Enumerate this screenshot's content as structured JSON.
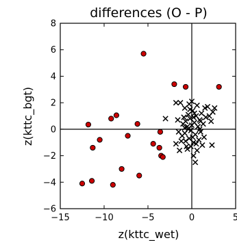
{
  "chart_data": {
    "type": "scatter",
    "title": "differences (O - P)",
    "xlabel": "z(kttc_wet)",
    "ylabel": "z(kttc_bgt)",
    "xlim": [
      -15,
      5
    ],
    "ylim": [
      -6,
      8
    ],
    "xticks": [
      "−15",
      "−10",
      "−5",
      "0",
      "5"
    ],
    "xtick_values": [
      -15,
      -10,
      -5,
      0,
      5
    ],
    "yticks": [
      "8",
      "6",
      "4",
      "2",
      "0",
      "−2",
      "−4",
      "−6"
    ],
    "ytick_values": [
      8,
      6,
      4,
      2,
      0,
      -2,
      -4,
      -6
    ],
    "reference_lines": {
      "x": 0,
      "y": 0
    },
    "grid": false,
    "series": [
      {
        "marker": "circle",
        "color": "#cc0000",
        "points": [
          [
            -12.5,
            -4.1
          ],
          [
            -11.8,
            0.35
          ],
          [
            -11.3,
            -1.4
          ],
          [
            -11.4,
            -3.9
          ],
          [
            -10.5,
            -0.8
          ],
          [
            -9.2,
            0.8
          ],
          [
            -9.0,
            -4.2
          ],
          [
            -8.6,
            1.05
          ],
          [
            -8.0,
            -3.0
          ],
          [
            -7.3,
            -0.5
          ],
          [
            -6.2,
            0.4
          ],
          [
            -6.0,
            -3.5
          ],
          [
            -5.5,
            5.7
          ],
          [
            -4.4,
            -1.1
          ],
          [
            -3.7,
            -1.4
          ],
          [
            -3.6,
            -0.2
          ],
          [
            -3.5,
            -2.0
          ],
          [
            -3.3,
            -2.1
          ],
          [
            -2.0,
            3.4
          ],
          [
            -0.7,
            3.2
          ],
          [
            3.1,
            3.2
          ]
        ]
      },
      {
        "marker": "x",
        "color": "#000000",
        "points": [
          [
            -3.0,
            0.8
          ],
          [
            -1.8,
            2.0
          ],
          [
            -1.3,
            2.0
          ],
          [
            -0.8,
            1.6
          ],
          [
            -0.3,
            1.9
          ],
          [
            0.0,
            2.1
          ],
          [
            -1.8,
            -1.1
          ],
          [
            -1.4,
            -1.6
          ],
          [
            -1.2,
            -0.9
          ],
          [
            -1.0,
            0.4
          ],
          [
            -0.9,
            0.9
          ],
          [
            -0.8,
            -0.3
          ],
          [
            -0.7,
            0.6
          ],
          [
            -0.6,
            -1.3
          ],
          [
            -0.5,
            0.2
          ],
          [
            -0.4,
            1.1
          ],
          [
            -0.3,
            -0.7
          ],
          [
            -0.2,
            0.8
          ],
          [
            -0.1,
            -0.1
          ],
          [
            0.1,
            1.4
          ],
          [
            0.2,
            -1.0
          ],
          [
            0.3,
            0.5
          ],
          [
            0.4,
            -0.4
          ],
          [
            0.5,
            1.0
          ],
          [
            0.6,
            -1.6
          ],
          [
            0.7,
            0.2
          ],
          [
            0.8,
            -0.8
          ],
          [
            0.9,
            0.7
          ],
          [
            1.0,
            -0.2
          ],
          [
            1.1,
            1.2
          ],
          [
            1.2,
            -1.2
          ],
          [
            1.3,
            0.4
          ],
          [
            1.5,
            1.6
          ],
          [
            1.6,
            0.9
          ],
          [
            1.8,
            1.7
          ],
          [
            2.0,
            1.0
          ],
          [
            2.2,
            0.6
          ],
          [
            2.4,
            1.3
          ],
          [
            2.6,
            1.6
          ],
          [
            2.3,
            -1.2
          ],
          [
            0.2,
            -2.0
          ],
          [
            0.4,
            -2.5
          ],
          [
            -0.5,
            -1.5
          ],
          [
            -1.5,
            -0.2
          ],
          [
            -1.1,
            -0.5
          ],
          [
            0.0,
            0.3
          ],
          [
            0.1,
            -0.6
          ],
          [
            -0.2,
            1.5
          ],
          [
            0.6,
            1.8
          ],
          [
            -0.7,
            -0.9
          ],
          [
            1.4,
            -0.6
          ],
          [
            0.9,
            0.0
          ],
          [
            -0.4,
            0.0
          ],
          [
            0.3,
            1.2
          ],
          [
            -1.6,
            0.7
          ],
          [
            -0.8,
            0.1
          ],
          [
            0.5,
            -1.1
          ],
          [
            1.0,
            0.6
          ],
          [
            -0.1,
            -1.3
          ],
          [
            0.2,
            0.9
          ]
        ]
      }
    ]
  }
}
